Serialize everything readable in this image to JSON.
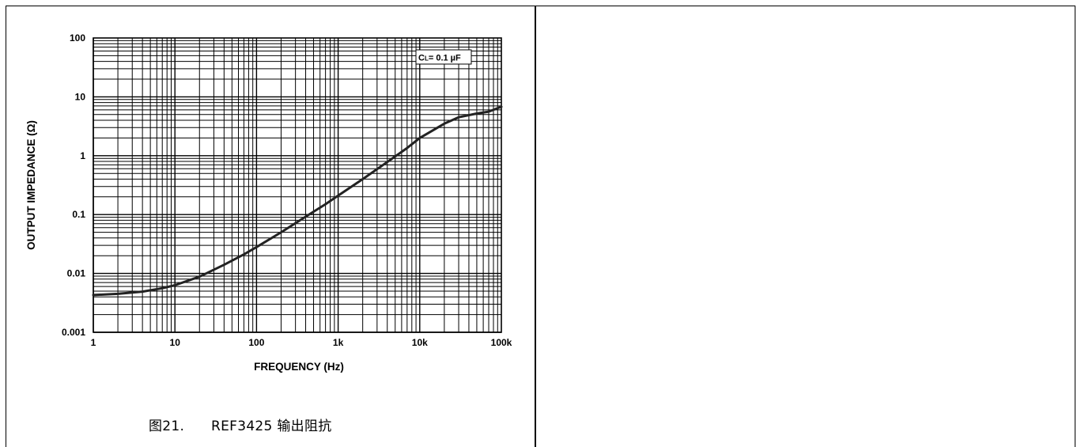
{
  "chart_data": {
    "type": "line",
    "title": "",
    "xlabel": "FREQUENCY (Hz)",
    "ylabel": "OUTPUT IMPEDANCE (Ω)",
    "x_scale": "log",
    "y_scale": "log",
    "xlim": [
      1,
      100000
    ],
    "ylim": [
      0.001,
      100
    ],
    "x_ticks": [
      1,
      10,
      100,
      1000,
      10000,
      100000
    ],
    "x_tick_labels": [
      "1",
      "10",
      "100",
      "1k",
      "10k",
      "100k"
    ],
    "y_ticks": [
      0.001,
      0.01,
      0.1,
      1,
      10,
      100
    ],
    "y_tick_labels": [
      "0.001",
      "0.01",
      "0.1",
      "1",
      "10",
      "100"
    ],
    "grid": true,
    "annotation": {
      "prefix": "C",
      "subscript": "L",
      "text": "= 0.1 µF",
      "placement": "top-right"
    },
    "series": [
      {
        "x": [
          1,
          2,
          4,
          7,
          10,
          20,
          40,
          70,
          100,
          200,
          400,
          700,
          1000,
          2000,
          4000,
          7000,
          10000,
          20000,
          30000,
          50000,
          70000,
          100000
        ],
        "y": [
          0.0043,
          0.0045,
          0.0049,
          0.0056,
          0.0063,
          0.0088,
          0.014,
          0.021,
          0.028,
          0.05,
          0.092,
          0.15,
          0.21,
          0.4,
          0.78,
          1.35,
          2.0,
          3.5,
          4.5,
          5.2,
          5.6,
          6.8
        ]
      }
    ]
  },
  "caption": {
    "number": "图21.",
    "text": "REF3425 输出阻抗"
  }
}
